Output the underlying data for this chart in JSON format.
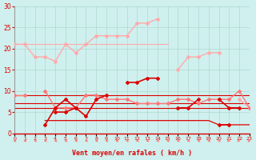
{
  "x": [
    0,
    1,
    2,
    3,
    4,
    5,
    6,
    7,
    8,
    9,
    10,
    11,
    12,
    13,
    14,
    15,
    16,
    17,
    18,
    19,
    20,
    21,
    22,
    23
  ],
  "background_color": "#cff0ee",
  "grid_color": "#b0d8d0",
  "color_light": "#ffaaaa",
  "color_medium": "#ff7777",
  "color_dark": "#dd0000",
  "color_darkest": "#aa0000",
  "series_rafales_high": [
    21,
    21,
    18,
    18,
    17,
    21,
    19,
    21,
    23,
    23,
    23,
    23,
    26,
    26,
    27,
    null,
    15,
    18,
    18,
    19,
    19,
    null,
    8,
    6
  ],
  "series_moy_flat": [
    21,
    21,
    21,
    21,
    21,
    21,
    21,
    21,
    21,
    21,
    21,
    21,
    21,
    21,
    21,
    21,
    null,
    null,
    null,
    null,
    null,
    null,
    null,
    null
  ],
  "series_medium": [
    9,
    9,
    null,
    10,
    6,
    6,
    6,
    9,
    9,
    8,
    8,
    8,
    7,
    7,
    7,
    7,
    8,
    8,
    7,
    8,
    8,
    8,
    10,
    6
  ],
  "series_flat_9": [
    9,
    9,
    9,
    9,
    9,
    9,
    9,
    9,
    9,
    9,
    9,
    9,
    9,
    9,
    9,
    9,
    9,
    9,
    9,
    9,
    9,
    9,
    9,
    9
  ],
  "series_flat_6": [
    6,
    6,
    6,
    6,
    6,
    6,
    6,
    6,
    6,
    6,
    6,
    6,
    6,
    6,
    6,
    6,
    6,
    6,
    6,
    6,
    6,
    6,
    6,
    6
  ],
  "series_flat_7": [
    7,
    7,
    7,
    7,
    7,
    7,
    7,
    7,
    7,
    7,
    7,
    7,
    7,
    7,
    7,
    7,
    7,
    7,
    7,
    7,
    7,
    7,
    7,
    7
  ],
  "series_dark1": [
    null,
    null,
    null,
    2,
    6,
    8,
    6,
    4,
    8,
    9,
    null,
    12,
    12,
    13,
    13,
    null,
    null,
    null,
    null,
    null,
    2,
    2,
    null,
    null
  ],
  "series_dark2": [
    null,
    null,
    null,
    null,
    5,
    5,
    6,
    null,
    null,
    null,
    null,
    null,
    null,
    null,
    null,
    null,
    6,
    6,
    8,
    null,
    8,
    6,
    6,
    null
  ],
  "series_flat_2": [
    null,
    null,
    null,
    3,
    3,
    3,
    3,
    3,
    3,
    3,
    3,
    3,
    3,
    3,
    3,
    3,
    3,
    3,
    3,
    3,
    2,
    2,
    2,
    2
  ],
  "xlabel": "Vent moyen/en rafales ( km/h )",
  "xlim": [
    0,
    23
  ],
  "ylim": [
    0,
    30
  ],
  "yticks": [
    0,
    5,
    10,
    15,
    20,
    25,
    30
  ],
  "xticks": [
    0,
    1,
    2,
    3,
    4,
    5,
    6,
    7,
    8,
    9,
    10,
    11,
    12,
    13,
    14,
    15,
    16,
    17,
    18,
    19,
    20,
    21,
    22,
    23
  ]
}
